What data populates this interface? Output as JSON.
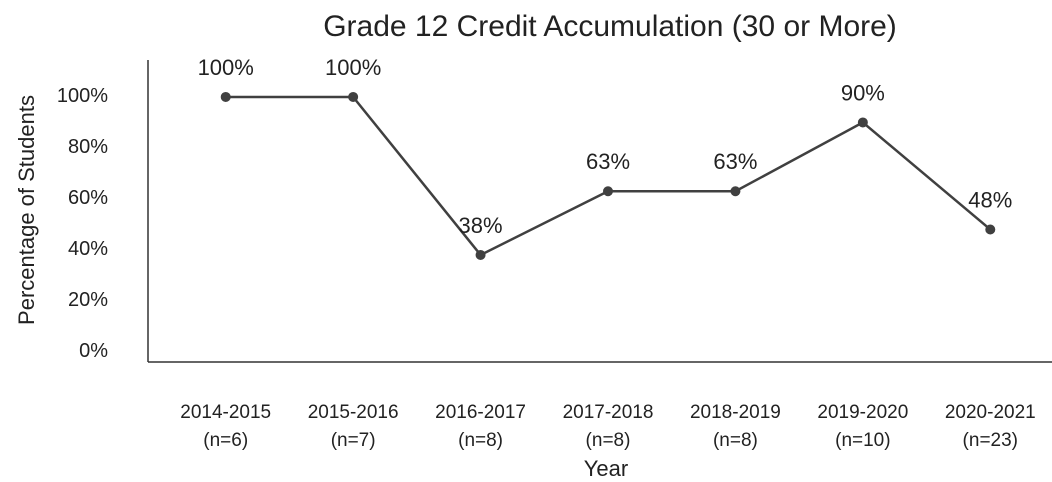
{
  "chart_data": {
    "type": "line",
    "title": "Grade 12 Credit Accumulation (30 or More)",
    "x_label": "Year",
    "y_label": "Percentage of Students",
    "categories": [
      [
        "2014-2015",
        "(n=6)"
      ],
      [
        "2015-2016",
        "(n=7)"
      ],
      [
        "2016-2017",
        "(n=8)"
      ],
      [
        "2017-2018",
        "(n=8)"
      ],
      [
        "2018-2019",
        "(n=8)"
      ],
      [
        "2019-2020",
        "(n=10)"
      ],
      [
        "2020-2021",
        "(n=23)"
      ]
    ],
    "values": [
      100,
      100,
      38,
      63,
      63,
      90,
      48
    ],
    "value_labels": [
      "100%",
      "100%",
      "38%",
      "63%",
      "63%",
      "90%",
      "48%"
    ],
    "color": "#404040",
    "ylim": [
      -4,
      114.5
    ],
    "yticks": [
      {
        "value": 0,
        "label": "0%"
      },
      {
        "value": 20,
        "label": "20%"
      },
      {
        "value": 40,
        "label": "40%"
      },
      {
        "value": 60,
        "label": "60%"
      },
      {
        "value": 80,
        "label": "80%"
      },
      {
        "value": 100,
        "label": "100%"
      }
    ],
    "grid": false
  }
}
